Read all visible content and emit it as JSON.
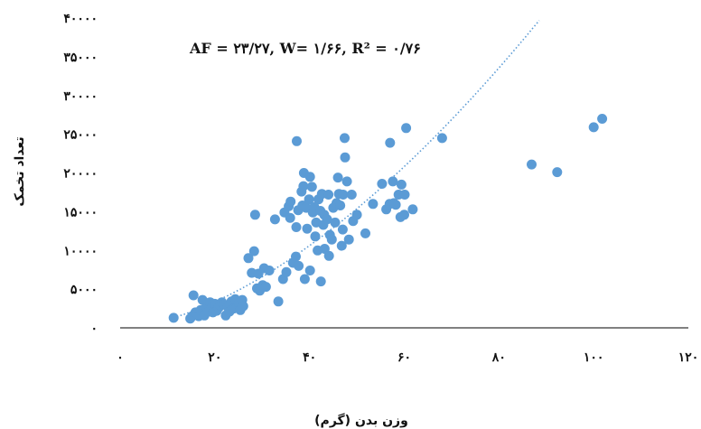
{
  "chart_data": {
    "type": "scatter",
    "title": "",
    "xlabel": "وزن بدن (گرم)",
    "ylabel": "تعداد تخمک",
    "annotation": "AF = ۲۳/۲۷, W= ۱/۶۶, R² = ۰/۷۶",
    "xlim": [
      0,
      120
    ],
    "ylim": [
      0,
      40000
    ],
    "x_ticks": [
      0,
      20,
      40,
      60,
      80,
      100,
      120
    ],
    "x_tick_labels": [
      "۰",
      "۲۰",
      "۴۰",
      "۶۰",
      "۸۰",
      "۱۰۰",
      "۱۲۰"
    ],
    "y_ticks": [
      0,
      5000,
      10000,
      15000,
      20000,
      25000,
      30000,
      35000,
      40000
    ],
    "y_tick_labels": [
      "۰",
      "۵۰۰۰",
      "۱۰۰۰۰",
      "۱۵۰۰۰",
      "۲۰۰۰۰",
      "۲۵۰۰۰",
      "۳۰۰۰۰",
      "۳۵۰۰۰",
      "۴۰۰۰۰"
    ],
    "grid": false,
    "legend": "none",
    "colors": {
      "point": "#5b9bd5",
      "trendline": "#5b9bd5",
      "axis": "#000000"
    },
    "trendline": {
      "type": "power",
      "a": 23.27,
      "b": 1.66,
      "r2": 0.76
    },
    "series": [
      {
        "points": [
          [
            11.3,
            1300
          ],
          [
            14.8,
            1200
          ],
          [
            15.2,
            1500
          ],
          [
            15.5,
            4200
          ],
          [
            15.9,
            2000
          ],
          [
            16.3,
            1800
          ],
          [
            16.6,
            1500
          ],
          [
            17,
            2300
          ],
          [
            17.4,
            3600
          ],
          [
            17.8,
            1600
          ],
          [
            18.2,
            2700
          ],
          [
            18.7,
            2100
          ],
          [
            19,
            3300
          ],
          [
            19.3,
            2600
          ],
          [
            19.6,
            2000
          ],
          [
            20,
            3100
          ],
          [
            20.4,
            2200
          ],
          [
            20.8,
            2600
          ],
          [
            21.1,
            2900
          ],
          [
            21.5,
            3300
          ],
          [
            21.9,
            3000
          ],
          [
            22.3,
            1600
          ],
          [
            22.7,
            2700
          ],
          [
            23.1,
            2100
          ],
          [
            23.5,
            3400
          ],
          [
            24,
            2500
          ],
          [
            24.3,
            3700
          ],
          [
            24.6,
            2600
          ],
          [
            25.1,
            3200
          ],
          [
            25.4,
            2300
          ],
          [
            25.8,
            3600
          ],
          [
            26,
            2800
          ],
          [
            27.1,
            9000
          ],
          [
            27.8,
            7100
          ],
          [
            28.3,
            9900
          ],
          [
            28.5,
            14600
          ],
          [
            28.9,
            5100
          ],
          [
            29.2,
            7000
          ],
          [
            29.5,
            4800
          ],
          [
            30.1,
            5500
          ],
          [
            30.4,
            7700
          ],
          [
            30.8,
            5300
          ],
          [
            31.5,
            7400
          ],
          [
            32.7,
            14000
          ],
          [
            33.4,
            3400
          ],
          [
            34.4,
            6300
          ],
          [
            34.7,
            14900
          ],
          [
            35.1,
            7200
          ],
          [
            35.6,
            15700
          ],
          [
            35.9,
            14200
          ],
          [
            36,
            16300
          ],
          [
            36.5,
            8400
          ],
          [
            37.1,
            9200
          ],
          [
            37.2,
            13000
          ],
          [
            37.3,
            24100
          ],
          [
            37.6,
            15200
          ],
          [
            37.7,
            8000
          ],
          [
            38.3,
            17600
          ],
          [
            38.5,
            15800
          ],
          [
            38.7,
            18300
          ],
          [
            38.8,
            20000
          ],
          [
            39,
            6300
          ],
          [
            39.3,
            15500
          ],
          [
            39.5,
            12800
          ],
          [
            39.9,
            16600
          ],
          [
            40.1,
            19500
          ],
          [
            40.1,
            7400
          ],
          [
            40.5,
            18200
          ],
          [
            40.7,
            14900
          ],
          [
            41,
            15600
          ],
          [
            41.2,
            11800
          ],
          [
            41.4,
            13600
          ],
          [
            41.7,
            10000
          ],
          [
            41.9,
            16600
          ],
          [
            42.3,
            15100
          ],
          [
            42.4,
            6000
          ],
          [
            42.6,
            17300
          ],
          [
            42.9,
            13300
          ],
          [
            43.1,
            14600
          ],
          [
            43.2,
            10200
          ],
          [
            43.7,
            14000
          ],
          [
            44,
            17200
          ],
          [
            44.1,
            9300
          ],
          [
            44.3,
            12000
          ],
          [
            44.7,
            11400
          ],
          [
            45,
            15500
          ],
          [
            45.4,
            13600
          ],
          [
            45.7,
            16100
          ],
          [
            46,
            19400
          ],
          [
            46.2,
            17300
          ],
          [
            46.5,
            15800
          ],
          [
            46.8,
            10600
          ],
          [
            47,
            12700
          ],
          [
            47.1,
            17200
          ],
          [
            47.4,
            24500
          ],
          [
            47.5,
            22000
          ],
          [
            47.9,
            18900
          ],
          [
            48.3,
            11400
          ],
          [
            48.9,
            17200
          ],
          [
            49.2,
            13800
          ],
          [
            50,
            14600
          ],
          [
            51.8,
            12200
          ],
          [
            53.4,
            16000
          ],
          [
            55.3,
            18600
          ],
          [
            56.2,
            15300
          ],
          [
            56.9,
            16000
          ],
          [
            57,
            23900
          ],
          [
            57.6,
            18900
          ],
          [
            57.8,
            16100
          ],
          [
            58.2,
            15900
          ],
          [
            58.8,
            17200
          ],
          [
            59.2,
            14300
          ],
          [
            59.4,
            18500
          ],
          [
            60,
            14600
          ],
          [
            60.1,
            17200
          ],
          [
            60.4,
            25800
          ],
          [
            61.8,
            15300
          ],
          [
            68,
            24500
          ],
          [
            86.9,
            21100
          ],
          [
            92.3,
            20100
          ],
          [
            100,
            25900
          ],
          [
            101.8,
            27000
          ]
        ]
      }
    ]
  }
}
